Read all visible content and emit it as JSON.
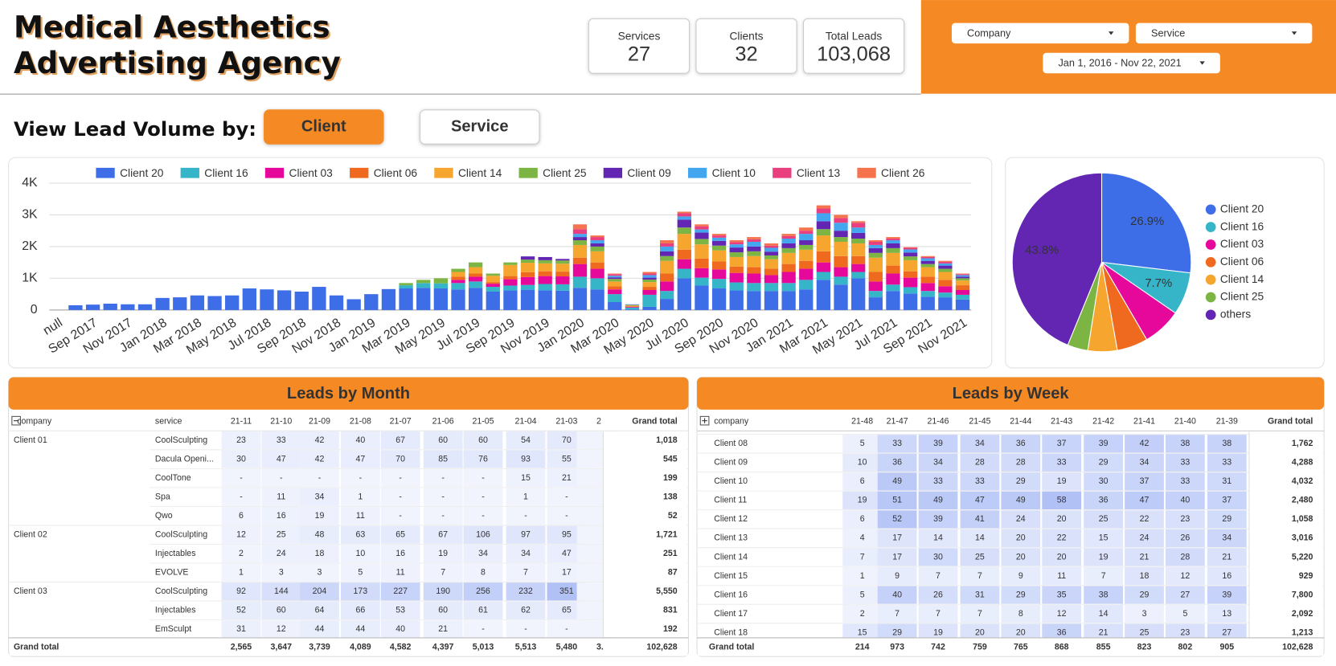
{
  "header": {
    "title_line1": "Medical Aesthetics",
    "title_line2": "Advertising Agency"
  },
  "kpis": [
    {
      "label": "Services",
      "value": 27
    },
    {
      "label": "Clients",
      "value": 32
    },
    {
      "label": "Total Leads",
      "value": "103,068"
    }
  ],
  "filters": [
    "Company",
    "Service",
    "Jan 1, 2016 - Nov 22, 2021"
  ],
  "view_by": {
    "label": "View Lead Volume by:",
    "options": [
      "Client",
      "Service"
    ]
  },
  "chart_data": [
    {
      "type": "bar",
      "stacked": true,
      "legend": "top",
      "grid": true,
      "categories": [
        "null",
        null,
        "Sep 2017",
        null,
        "Nov 2017",
        null,
        "Jan 2018",
        null,
        "Mar 2018",
        null,
        "May 2018",
        null,
        "Jul 2018",
        null,
        "Sep 2018",
        null,
        "Nov 2018",
        null,
        "Jan 2019",
        null,
        "Mar 2019",
        null,
        "May 2019",
        null,
        "Jul 2019",
        null,
        "Sep 2019",
        null,
        "Nov 2019",
        null,
        "Jan 2020",
        null,
        "Mar 2020",
        null,
        "May 2020",
        null,
        "Jul 2020",
        null,
        "Sep 2020",
        null,
        "Nov 2020",
        null,
        "Jan 2021",
        null,
        "Mar 2021",
        null,
        "May 2021",
        null,
        "Jul 2021",
        null,
        "Sep 2021",
        null,
        "Nov 2021"
      ],
      "ylim": [
        0,
        4000
      ],
      "yticks": [
        0,
        {
          "value": 1000,
          "label": "1K"
        },
        {
          "value": 2000,
          "label": "2K"
        },
        {
          "value": 3000,
          "label": "3K"
        },
        {
          "value": 4000,
          "label": "4K"
        }
      ],
      "series": [
        {
          "name": "Client 20",
          "color": "#3d6ee8",
          "values": [
            0,
            150,
            170,
            200,
            180,
            180,
            380,
            400,
            460,
            440,
            460,
            680,
            650,
            620,
            580,
            730,
            460,
            340,
            500,
            660,
            680,
            700,
            680,
            650,
            700,
            580,
            620,
            640,
            620,
            610,
            700,
            650,
            250,
            20,
            100,
            350,
            1000,
            770,
            680,
            620,
            600,
            600,
            600,
            650,
            950,
            800,
            1000,
            400,
            600,
            520,
            420,
            400,
            330
          ]
        },
        {
          "name": "Client 16",
          "color": "#36b5c9",
          "values": [
            0,
            0,
            0,
            0,
            0,
            0,
            0,
            0,
            0,
            0,
            0,
            0,
            0,
            0,
            0,
            0,
            0,
            0,
            0,
            0,
            100,
            150,
            160,
            200,
            200,
            150,
            150,
            150,
            200,
            200,
            350,
            350,
            250,
            60,
            380,
            250,
            300,
            250,
            300,
            250,
            250,
            250,
            250,
            300,
            250,
            250,
            200,
            200,
            200,
            200,
            180,
            150,
            150
          ]
        },
        {
          "name": "Client 03",
          "color": "#e6079b",
          "values": [
            0,
            0,
            0,
            0,
            0,
            0,
            0,
            0,
            0,
            0,
            0,
            0,
            0,
            0,
            0,
            0,
            0,
            0,
            0,
            0,
            0,
            0,
            0,
            100,
            150,
            100,
            200,
            250,
            250,
            250,
            400,
            300,
            150,
            20,
            150,
            300,
            300,
            300,
            300,
            300,
            300,
            250,
            350,
            350,
            300,
            300,
            250,
            300,
            350,
            300,
            250,
            200,
            150
          ]
        },
        {
          "name": "Client 06",
          "color": "#ef6a1f",
          "values": [
            0,
            0,
            0,
            0,
            0,
            0,
            0,
            0,
            0,
            0,
            0,
            0,
            0,
            0,
            0,
            0,
            0,
            0,
            0,
            0,
            0,
            0,
            0,
            100,
            100,
            50,
            100,
            150,
            150,
            150,
            200,
            200,
            100,
            20,
            100,
            250,
            300,
            300,
            250,
            200,
            200,
            200,
            250,
            250,
            350,
            350,
            250,
            300,
            250,
            200,
            200,
            200,
            150
          ]
        },
        {
          "name": "Client 14",
          "color": "#f6a52f",
          "values": [
            0,
            0,
            0,
            0,
            0,
            0,
            0,
            0,
            0,
            0,
            0,
            0,
            0,
            0,
            0,
            0,
            0,
            0,
            0,
            0,
            0,
            0,
            0,
            150,
            200,
            200,
            350,
            300,
            250,
            250,
            400,
            350,
            150,
            20,
            150,
            400,
            500,
            450,
            350,
            300,
            350,
            300,
            350,
            350,
            500,
            450,
            400,
            450,
            400,
            350,
            300,
            250,
            150
          ]
        },
        {
          "name": "Client 25",
          "color": "#7db544",
          "values": [
            0,
            0,
            0,
            0,
            0,
            0,
            0,
            0,
            0,
            0,
            0,
            0,
            0,
            0,
            0,
            0,
            0,
            0,
            0,
            0,
            70,
            100,
            160,
            100,
            150,
            70,
            80,
            100,
            100,
            100,
            150,
            150,
            80,
            20,
            80,
            150,
            200,
            170,
            150,
            150,
            150,
            120,
            150,
            150,
            200,
            150,
            150,
            150,
            150,
            120,
            100,
            100,
            70
          ]
        },
        {
          "name": "Client 09",
          "color": "#6226b3",
          "values": [
            0,
            0,
            0,
            0,
            0,
            0,
            0,
            0,
            0,
            0,
            0,
            0,
            0,
            0,
            0,
            0,
            0,
            0,
            0,
            0,
            0,
            0,
            0,
            0,
            0,
            0,
            0,
            100,
            100,
            50,
            100,
            100,
            50,
            10,
            60,
            150,
            250,
            200,
            150,
            150,
            150,
            120,
            150,
            150,
            250,
            200,
            180,
            150,
            150,
            120,
            100,
            100,
            50
          ]
        },
        {
          "name": "Client 10",
          "color": "#44a6ef",
          "values": [
            0,
            0,
            0,
            0,
            0,
            0,
            0,
            0,
            0,
            0,
            0,
            0,
            0,
            0,
            0,
            0,
            0,
            0,
            0,
            0,
            0,
            0,
            0,
            0,
            0,
            0,
            0,
            0,
            0,
            0,
            100,
            100,
            50,
            10,
            80,
            150,
            100,
            100,
            100,
            100,
            150,
            120,
            150,
            200,
            250,
            250,
            170,
            100,
            100,
            100,
            80,
            70,
            50
          ]
        },
        {
          "name": "Client 13",
          "color": "#e93f7f",
          "values": [
            0,
            0,
            0,
            0,
            0,
            0,
            0,
            0,
            0,
            0,
            0,
            0,
            0,
            0,
            0,
            0,
            0,
            0,
            0,
            0,
            0,
            0,
            0,
            0,
            0,
            0,
            0,
            0,
            0,
            0,
            150,
            100,
            50,
            0,
            50,
            100,
            100,
            100,
            70,
            70,
            80,
            70,
            80,
            100,
            150,
            150,
            150,
            100,
            50,
            50,
            40,
            50,
            30
          ]
        },
        {
          "name": "Client 26",
          "color": "#f5744e",
          "values": [
            0,
            0,
            0,
            0,
            0,
            0,
            0,
            0,
            0,
            0,
            0,
            0,
            0,
            0,
            0,
            0,
            0,
            0,
            0,
            0,
            0,
            0,
            0,
            0,
            0,
            0,
            0,
            0,
            0,
            0,
            150,
            50,
            20,
            0,
            50,
            100,
            50,
            60,
            50,
            60,
            70,
            70,
            70,
            100,
            100,
            100,
            50,
            50,
            50,
            20,
            30,
            30,
            20
          ]
        }
      ]
    },
    {
      "type": "pie",
      "legend": "right",
      "categories": [
        "Client 20",
        "Client 16",
        "Client 03",
        "Client 06",
        "Client 14",
        "Client 25",
        "others"
      ],
      "values": [
        26.9,
        7.7,
        7.0,
        5.6,
        5.3,
        3.7,
        43.8
      ],
      "value_labels": [
        "26.9%",
        "7.7%",
        null,
        null,
        null,
        null,
        "43.8%"
      ],
      "colors": [
        "#3d6ee8",
        "#36b5c9",
        "#e6079b",
        "#ef6a1f",
        "#f6a52f",
        "#7db544",
        "#6226b3"
      ]
    }
  ],
  "tables": [
    {
      "title": "Leads by Month",
      "columns": [
        "company",
        "service",
        "21-11",
        "21-10",
        "21-09",
        "21-08",
        "21-07",
        "21-06",
        "21-05",
        "21-04",
        "21-03",
        "2",
        "Grand total"
      ],
      "rows": [
        [
          "Client 01",
          "CoolSculpting",
          "23",
          "33",
          "42",
          "40",
          "67",
          "60",
          "60",
          "54",
          "70",
          null,
          "1,018"
        ],
        [
          null,
          "Dacula Openi...",
          "30",
          "47",
          "42",
          "47",
          "70",
          "85",
          "76",
          "93",
          "55",
          null,
          "545"
        ],
        [
          null,
          "CoolTone",
          "-",
          "-",
          "-",
          "-",
          "-",
          "-",
          "-",
          "15",
          "21",
          null,
          "199"
        ],
        [
          null,
          "Spa",
          "-",
          "11",
          "34",
          "1",
          "-",
          "-",
          "-",
          "1",
          "-",
          null,
          "138"
        ],
        [
          null,
          "Qwo",
          "6",
          "16",
          "19",
          "11",
          "-",
          "-",
          "-",
          "-",
          "-",
          null,
          "52"
        ],
        [
          "Client 02",
          "CoolSculpting",
          "12",
          "25",
          "48",
          "63",
          "65",
          "67",
          "106",
          "97",
          "95",
          null,
          "1,721"
        ],
        [
          null,
          "Injectables",
          "2",
          "24",
          "18",
          "10",
          "16",
          "19",
          "34",
          "34",
          "47",
          null,
          "251"
        ],
        [
          null,
          "EVOLVE",
          "1",
          "3",
          "3",
          "5",
          "11",
          "7",
          "8",
          "7",
          "17",
          null,
          "87"
        ],
        [
          "Client 03",
          "CoolSculpting",
          "92",
          "144",
          "204",
          "173",
          "227",
          "190",
          "256",
          "232",
          "351",
          null,
          "5,550"
        ],
        [
          null,
          "Injectables",
          "52",
          "60",
          "64",
          "66",
          "53",
          "60",
          "61",
          "62",
          "65",
          null,
          "831"
        ],
        [
          null,
          "EmSculpt",
          "31",
          "12",
          "44",
          "44",
          "40",
          "21",
          "-",
          "-",
          "-",
          null,
          "192"
        ]
      ],
      "total": [
        "Grand total",
        null,
        "2,565",
        "3,647",
        "3,739",
        "4,089",
        "4,582",
        "4,397",
        "5,013",
        "5,513",
        "5,480",
        "3.",
        "102,628"
      ]
    },
    {
      "title": "Leads by Week",
      "columns": [
        "company",
        "21-48",
        "21-47",
        "21-46",
        "21-45",
        "21-44",
        "21-43",
        "21-42",
        "21-41",
        "21-40",
        "21-39",
        "Grand total"
      ],
      "rows": [
        [
          "Client 08",
          "5",
          "33",
          "39",
          "34",
          "36",
          "37",
          "39",
          "42",
          "38",
          "38",
          "1,762"
        ],
        [
          "Client 09",
          "10",
          "36",
          "34",
          "28",
          "28",
          "33",
          "29",
          "34",
          "33",
          "33",
          "4,288"
        ],
        [
          "Client 10",
          "6",
          "49",
          "33",
          "33",
          "29",
          "19",
          "30",
          "37",
          "33",
          "31",
          "4,032"
        ],
        [
          "Client 11",
          "19",
          "51",
          "49",
          "47",
          "49",
          "58",
          "36",
          "47",
          "40",
          "37",
          "2,480"
        ],
        [
          "Client 12",
          "6",
          "52",
          "39",
          "41",
          "24",
          "20",
          "25",
          "22",
          "23",
          "29",
          "1,058"
        ],
        [
          "Client 13",
          "4",
          "17",
          "14",
          "14",
          "20",
          "22",
          "15",
          "24",
          "26",
          "34",
          "3,016"
        ],
        [
          "Client 14",
          "7",
          "17",
          "30",
          "25",
          "20",
          "20",
          "19",
          "21",
          "28",
          "21",
          "5,220"
        ],
        [
          "Client 15",
          "1",
          "9",
          "7",
          "7",
          "9",
          "11",
          "7",
          "18",
          "12",
          "16",
          "929"
        ],
        [
          "Client 16",
          "5",
          "40",
          "26",
          "31",
          "29",
          "35",
          "38",
          "29",
          "27",
          "39",
          "7,800"
        ],
        [
          "Client 17",
          "2",
          "7",
          "7",
          "7",
          "8",
          "12",
          "14",
          "3",
          "5",
          "13",
          "2,092"
        ],
        [
          "Client 18",
          "15",
          "29",
          "19",
          "20",
          "20",
          "36",
          "21",
          "25",
          "23",
          "27",
          "1,213"
        ]
      ],
      "total": [
        "Grand total",
        "214",
        "973",
        "742",
        "759",
        "765",
        "868",
        "855",
        "823",
        "802",
        "905",
        "102,628"
      ]
    }
  ]
}
